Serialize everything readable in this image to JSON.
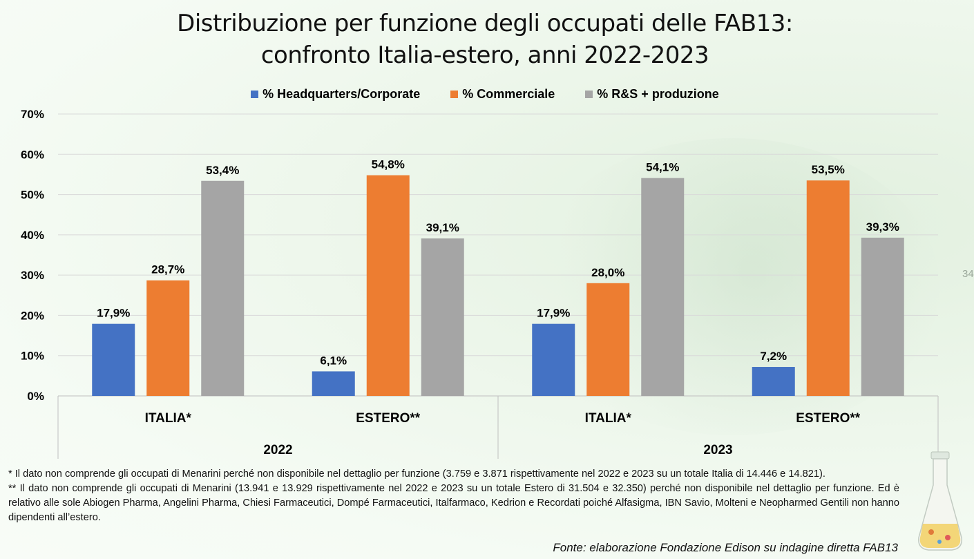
{
  "title_line1": "Distribuzione per funzione degli occupati delle FAB13:",
  "title_line2": "confronto Italia-estero, anni 2022-2023",
  "page_number": "34",
  "footnote1": "* Il dato non comprende gli occupati di Menarini perché non disponibile nel dettaglio per funzione (3.759 e 3.871 rispettivamente nel 2022 e 2023 su un totale Italia di 14.446  e 14.821).",
  "footnote2": "** Il dato non comprende gli occupati di Menarini (13.941 e 13.929 rispettivamente nel 2022 e 2023 su un totale Estero di 31.504 e 32.350) perché non disponibile nel dettaglio per funzione. Ed è relativo alle sole Abiogen Pharma, Angelini Pharma, Chiesi Farmaceutici, Dompé Farmaceutici, Italfarmaco, Kedrion e Recordati poiché Alfasigma, IBN Savio, Molteni e Neopharmed Gentili non hanno dipendenti all’estero.",
  "source": "Fonte: elaborazione Fondazione Edison su indagine diretta FAB13",
  "chart_data": {
    "type": "bar",
    "title": "Distribuzione per funzione degli occupati delle FAB13: confronto Italia-estero, anni 2022-2023",
    "categories": [
      "ITALIA*",
      "ESTERO**",
      "ITALIA*",
      "ESTERO**"
    ],
    "groups": [
      {
        "label": "2022",
        "categories": [
          "ITALIA*",
          "ESTERO**"
        ]
      },
      {
        "label": "2023",
        "categories": [
          "ITALIA*",
          "ESTERO**"
        ]
      }
    ],
    "series": [
      {
        "name": "% Headquarters/Corporate",
        "color": "#4472C4",
        "values": [
          17.9,
          6.1,
          17.9,
          7.2
        ],
        "labels": [
          "17,9%",
          "6,1%",
          "17,9%",
          "7,2%"
        ]
      },
      {
        "name": "% Commerciale",
        "color": "#ED7D31",
        "values": [
          28.7,
          54.8,
          28.0,
          53.5
        ],
        "labels": [
          "28,7%",
          "54,8%",
          "28,0%",
          "53,5%"
        ]
      },
      {
        "name": "% R&S + produzione",
        "color": "#A5A5A5",
        "values": [
          53.4,
          39.1,
          54.1,
          39.3
        ],
        "labels": [
          "53,4%",
          "39,1%",
          "54,1%",
          "39,3%"
        ]
      }
    ],
    "ylim": [
      0,
      70
    ],
    "yticks": [
      0,
      10,
      20,
      30,
      40,
      50,
      60,
      70
    ],
    "ytick_labels": [
      "0%",
      "10%",
      "20%",
      "30%",
      "40%",
      "50%",
      "60%",
      "70%"
    ],
    "grid": true,
    "legend": "top-center"
  }
}
